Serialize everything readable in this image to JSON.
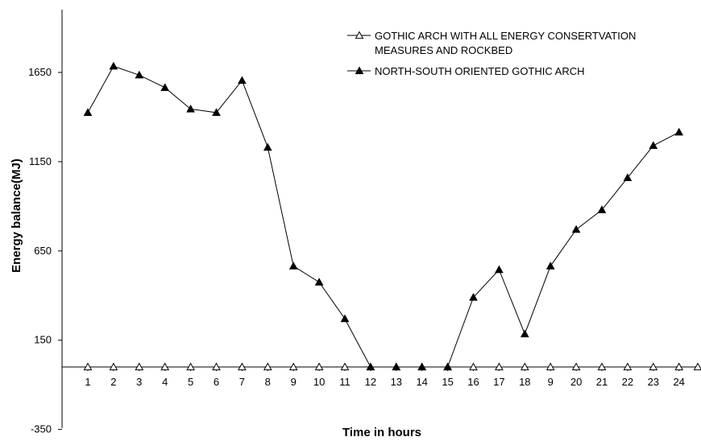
{
  "chart_data": {
    "type": "line",
    "xlabel": "Time in hours",
    "ylabel": "Energy balance(MJ)",
    "categories": [
      "1",
      "2",
      "3",
      "4",
      "5",
      "6",
      "7",
      "8",
      "9",
      "10",
      "11",
      "12",
      "13",
      "14",
      "15",
      "16",
      "17",
      "18",
      "9",
      "20",
      "21",
      "22",
      "23",
      "24"
    ],
    "yticks": [
      -350,
      150,
      650,
      1150,
      1650
    ],
    "ylim": [
      -350,
      1990
    ],
    "grid": false,
    "legend_position": "top-right",
    "series": [
      {
        "name": "GOTHIC ARCH WITH ALL ENERGY CONSERTVATION MEASURES AND ROCKBED",
        "legend_lines": [
          "GOTHIC ARCH WITH ALL ENERGY CONSERTVATION",
          "MEASURES AND ROCKBED"
        ],
        "marker": "open-triangle",
        "values": [
          0,
          0,
          0,
          0,
          0,
          0,
          0,
          0,
          0,
          0,
          0,
          0,
          0,
          0,
          0,
          0,
          0,
          0,
          0,
          0,
          0,
          0,
          0,
          0
        ]
      },
      {
        "name": "NORTH-SOUTH ORIENTED GOTHIC ARCH",
        "legend_lines": [
          "NORTH-SOUTH ORIENTED GOTHIC ARCH"
        ],
        "marker": "filled-triangle",
        "values": [
          1425,
          1685,
          1635,
          1565,
          1445,
          1425,
          1605,
          1230,
          565,
          475,
          270,
          0,
          0,
          0,
          0,
          390,
          545,
          185,
          565,
          770,
          880,
          1060,
          1240,
          1315
        ]
      }
    ],
    "colors": {
      "line": "#000000",
      "background": "#ffffff"
    }
  }
}
